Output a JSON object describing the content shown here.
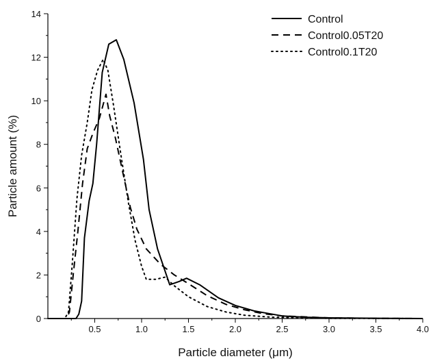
{
  "chart_data": {
    "type": "line",
    "title": "",
    "xlabel": "Particle diameter (μm)",
    "ylabel": "Particle amount (%)",
    "xlim": [
      0,
      4.0
    ],
    "ylim": [
      0,
      14
    ],
    "xticks": [
      "0.5",
      "1.0",
      "1.5",
      "2.0",
      "2.5",
      "3.0",
      "3.5",
      "4.0"
    ],
    "yticks": [
      "0",
      "2",
      "4",
      "6",
      "8",
      "10",
      "12",
      "14"
    ],
    "grid": false,
    "legend_position": "top-right",
    "series": [
      {
        "name": "Control",
        "style": "solid",
        "color": "#000000",
        "points": [
          [
            0.0,
            0
          ],
          [
            0.25,
            0
          ],
          [
            0.3,
            0
          ],
          [
            0.33,
            0.2
          ],
          [
            0.36,
            0.8
          ],
          [
            0.39,
            3.7
          ],
          [
            0.44,
            5.4
          ],
          [
            0.48,
            6.2
          ],
          [
            0.52,
            8.0
          ],
          [
            0.58,
            11.3
          ],
          [
            0.65,
            12.6
          ],
          [
            0.73,
            12.8
          ],
          [
            0.81,
            11.9
          ],
          [
            0.92,
            9.9
          ],
          [
            1.02,
            7.3
          ],
          [
            1.08,
            5.0
          ],
          [
            1.17,
            3.2
          ],
          [
            1.3,
            1.55
          ],
          [
            1.4,
            1.7
          ],
          [
            1.48,
            1.85
          ],
          [
            1.62,
            1.55
          ],
          [
            1.82,
            0.95
          ],
          [
            2.0,
            0.6
          ],
          [
            2.2,
            0.35
          ],
          [
            2.5,
            0.12
          ],
          [
            2.75,
            0.06
          ],
          [
            3.0,
            0.03
          ],
          [
            3.5,
            0.01
          ],
          [
            4.0,
            0
          ]
        ]
      },
      {
        "name": "Control0.05T20",
        "style": "dashed",
        "color": "#000000",
        "points": [
          [
            0.0,
            0
          ],
          [
            0.2,
            0
          ],
          [
            0.23,
            0.3
          ],
          [
            0.27,
            2.0
          ],
          [
            0.32,
            4.0
          ],
          [
            0.37,
            6.2
          ],
          [
            0.42,
            7.8
          ],
          [
            0.48,
            8.5
          ],
          [
            0.55,
            9.2
          ],
          [
            0.62,
            10.3
          ],
          [
            0.66,
            9.3
          ],
          [
            0.72,
            8.3
          ],
          [
            0.8,
            6.7
          ],
          [
            0.88,
            5.1
          ],
          [
            0.95,
            4.1
          ],
          [
            1.05,
            3.2
          ],
          [
            1.2,
            2.5
          ],
          [
            1.35,
            2.0
          ],
          [
            1.5,
            1.6
          ],
          [
            1.7,
            1.05
          ],
          [
            1.9,
            0.65
          ],
          [
            2.1,
            0.4
          ],
          [
            2.3,
            0.22
          ],
          [
            2.5,
            0.12
          ],
          [
            3.0,
            0.03
          ],
          [
            3.5,
            0.01
          ],
          [
            4.0,
            0
          ]
        ]
      },
      {
        "name": "Control0.1T20",
        "style": "dotted",
        "color": "#000000",
        "points": [
          [
            0.0,
            0
          ],
          [
            0.18,
            0
          ],
          [
            0.22,
            0.3
          ],
          [
            0.26,
            2.5
          ],
          [
            0.31,
            5.5
          ],
          [
            0.36,
            7.5
          ],
          [
            0.42,
            9.0
          ],
          [
            0.47,
            10.5
          ],
          [
            0.53,
            11.4
          ],
          [
            0.59,
            11.9
          ],
          [
            0.64,
            11.4
          ],
          [
            0.7,
            9.8
          ],
          [
            0.78,
            7.5
          ],
          [
            0.86,
            5.3
          ],
          [
            0.93,
            3.6
          ],
          [
            1.0,
            2.4
          ],
          [
            1.05,
            1.8
          ],
          [
            1.15,
            1.8
          ],
          [
            1.25,
            1.9
          ],
          [
            1.35,
            1.5
          ],
          [
            1.5,
            1.0
          ],
          [
            1.7,
            0.55
          ],
          [
            1.9,
            0.3
          ],
          [
            2.1,
            0.15
          ],
          [
            2.4,
            0.06
          ],
          [
            3.0,
            0.01
          ],
          [
            4.0,
            0
          ]
        ]
      }
    ]
  }
}
